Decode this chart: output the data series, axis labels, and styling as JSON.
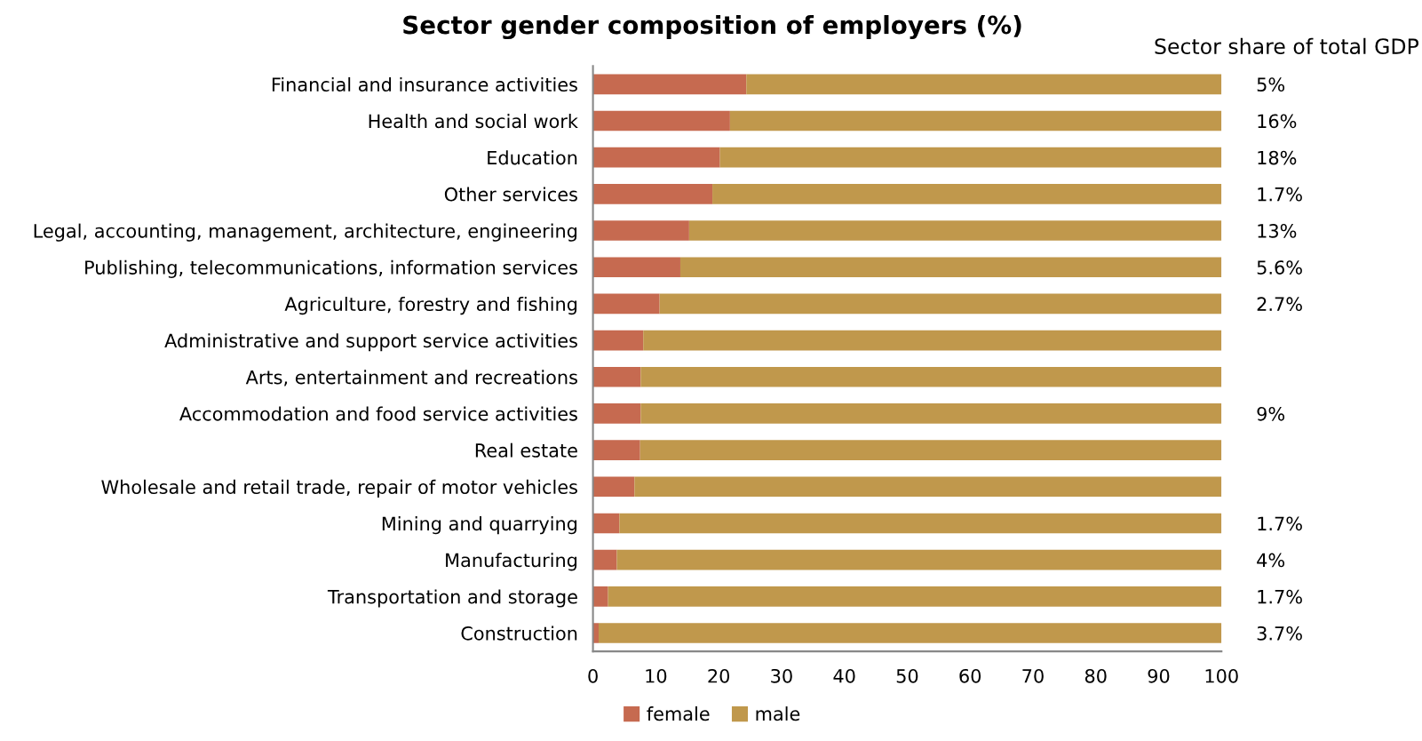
{
  "chart_data": {
    "type": "bar",
    "orientation": "horizontal",
    "stacked": true,
    "title": "Sector gender composition of employers (%)",
    "categories": [
      "Financial and insurance activities",
      "Health and social work",
      "Education",
      "Other services",
      "Legal, accounting, management, architecture, engineering",
      "Publishing, telecommunications, information services",
      "Agriculture, forestry and fishing",
      "Administrative and support service activities",
      "Arts, entertainment and recreations",
      "Accommodation and food service activities",
      "Real estate",
      "Wholesale and retail trade, repair of motor vehicles",
      "Mining and quarrying",
      "Manufacturing",
      "Transportation and storage",
      "Construction"
    ],
    "series": [
      {
        "name": "female",
        "color": "#c66a50",
        "values": [
          24.4,
          21.8,
          20.2,
          19.0,
          15.3,
          13.9,
          10.6,
          8.0,
          7.6,
          7.6,
          7.5,
          6.6,
          4.2,
          3.8,
          2.4,
          0.9
        ]
      },
      {
        "name": "male",
        "color": "#c0984c",
        "values": [
          75.6,
          78.2,
          79.8,
          81.0,
          84.7,
          86.1,
          89.4,
          92.0,
          92.4,
          92.4,
          92.5,
          93.4,
          95.8,
          96.2,
          97.6,
          99.1
        ]
      }
    ],
    "xlim": [
      0,
      100
    ],
    "xticks": [
      0,
      10,
      20,
      30,
      40,
      50,
      60,
      70,
      80,
      90,
      100
    ],
    "grid": false,
    "legend": "bottom",
    "y2label": "Sector share of total GDP",
    "y2_categories": [
      "5%",
      "16%",
      "18%",
      "1.7%",
      "13%",
      "5.6%",
      "2.7%",
      null,
      null,
      "9%",
      null,
      null,
      "1.7%",
      "4%",
      "1.7%",
      "3.7%"
    ]
  }
}
